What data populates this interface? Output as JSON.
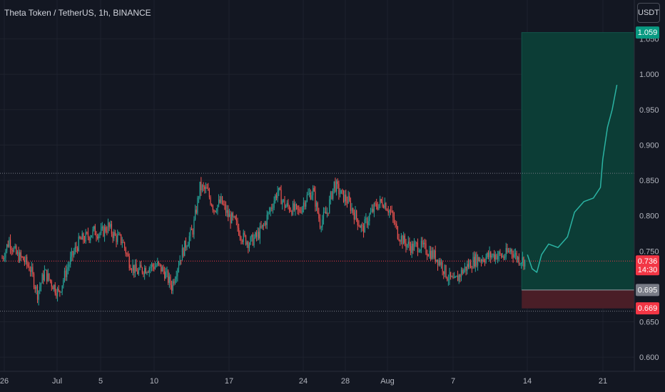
{
  "header": {
    "title": "Theta Token / TetherUS, 1h, BINANCE",
    "currency": "USDT"
  },
  "chart_data": {
    "type": "candlestick",
    "ylim": [
      0.58,
      1.105
    ],
    "y_ticks": [
      "0.600",
      "0.650",
      "0.700",
      "0.750",
      "0.800",
      "0.850",
      "0.900",
      "0.950",
      "1.000",
      "1.050"
    ],
    "x_ticks": [
      "26",
      "Jul",
      "5",
      "10",
      "17",
      "24",
      "28",
      "Aug",
      "7",
      "14",
      "21"
    ],
    "price_path": [
      [
        0,
        0.74
      ],
      [
        3,
        0.765
      ],
      [
        6,
        0.745
      ],
      [
        9,
        0.738
      ],
      [
        12,
        0.725
      ],
      [
        15,
        0.69
      ],
      [
        18,
        0.72
      ],
      [
        21,
        0.705
      ],
      [
        24,
        0.69
      ],
      [
        27,
        0.72
      ],
      [
        30,
        0.745
      ],
      [
        33,
        0.765
      ],
      [
        36,
        0.77
      ],
      [
        39,
        0.778
      ],
      [
        42,
        0.775
      ],
      [
        45,
        0.785
      ],
      [
        48,
        0.77
      ],
      [
        51,
        0.765
      ],
      [
        54,
        0.735
      ],
      [
        57,
        0.72
      ],
      [
        60,
        0.725
      ],
      [
        63,
        0.728
      ],
      [
        66,
        0.73
      ],
      [
        69,
        0.72
      ],
      [
        72,
        0.7
      ],
      [
        75,
        0.735
      ],
      [
        78,
        0.76
      ],
      [
        81,
        0.78
      ],
      [
        84,
        0.84
      ],
      [
        87,
        0.835
      ],
      [
        90,
        0.81
      ],
      [
        93,
        0.82
      ],
      [
        96,
        0.8
      ],
      [
        99,
        0.79
      ],
      [
        102,
        0.77
      ],
      [
        105,
        0.762
      ],
      [
        108,
        0.77
      ],
      [
        111,
        0.785
      ],
      [
        114,
        0.81
      ],
      [
        117,
        0.835
      ],
      [
        120,
        0.815
      ],
      [
        123,
        0.81
      ],
      [
        126,
        0.805
      ],
      [
        129,
        0.825
      ],
      [
        132,
        0.835
      ],
      [
        135,
        0.79
      ],
      [
        138,
        0.805
      ],
      [
        141,
        0.845
      ],
      [
        144,
        0.83
      ],
      [
        147,
        0.82
      ],
      [
        150,
        0.8
      ],
      [
        153,
        0.78
      ],
      [
        156,
        0.8
      ],
      [
        159,
        0.815
      ],
      [
        162,
        0.82
      ],
      [
        165,
        0.805
      ],
      [
        168,
        0.775
      ],
      [
        171,
        0.762
      ],
      [
        174,
        0.755
      ],
      [
        177,
        0.758
      ],
      [
        180,
        0.752
      ],
      [
        183,
        0.745
      ],
      [
        186,
        0.735
      ],
      [
        189,
        0.715
      ],
      [
        192,
        0.705
      ],
      [
        195,
        0.72
      ],
      [
        198,
        0.73
      ],
      [
        201,
        0.738
      ],
      [
        204,
        0.74
      ],
      [
        207,
        0.743
      ],
      [
        210,
        0.745
      ],
      [
        213,
        0.742
      ],
      [
        216,
        0.752
      ],
      [
        219,
        0.74
      ],
      [
        222,
        0.736
      ]
    ],
    "levels": [
      {
        "name": "resistance",
        "value": 0.86,
        "style": "dotted",
        "color": "#787b86"
      },
      {
        "name": "last-price",
        "value": 0.736,
        "style": "dotted",
        "color": "#f23645"
      },
      {
        "name": "support",
        "value": 0.665,
        "style": "dotted",
        "color": "#787b86"
      }
    ],
    "position": {
      "type": "long",
      "entry": 0.695,
      "target": 1.059,
      "stop": 0.669,
      "x_start_day": 214,
      "x_end_day": 252
    },
    "projection": [
      [
        214,
        0.745
      ],
      [
        216,
        0.725
      ],
      [
        218,
        0.72
      ],
      [
        220,
        0.745
      ],
      [
        223,
        0.76
      ],
      [
        227,
        0.755
      ],
      [
        231,
        0.77
      ],
      [
        234,
        0.805
      ],
      [
        238,
        0.82
      ],
      [
        242,
        0.825
      ],
      [
        245,
        0.84
      ],
      [
        246,
        0.88
      ],
      [
        248,
        0.925
      ],
      [
        250,
        0.95
      ],
      [
        252,
        0.985
      ]
    ],
    "price_labels": [
      {
        "name": "target",
        "text": "1.059",
        "value": 1.059,
        "bg": "#089981",
        "fg": "#ffffff"
      },
      {
        "name": "last-price",
        "text": "0.736",
        "sub": "14:30",
        "value": 0.736,
        "bg": "#f23645",
        "fg": "#ffffff"
      },
      {
        "name": "entry",
        "text": "0.695",
        "value": 0.695,
        "bg": "#787b86",
        "fg": "#ffffff"
      },
      {
        "name": "stop",
        "text": "0.669",
        "value": 0.669,
        "bg": "#f23645",
        "fg": "#ffffff"
      }
    ],
    "colors": {
      "up": "#26a69a",
      "down": "#ef5350",
      "profit_zone": "#0c3d36",
      "loss_zone": "#4a1e27",
      "projection": "#2bb3a3",
      "grid": "#1e222d",
      "background": "#131722"
    },
    "legend": "none",
    "grid": true
  }
}
